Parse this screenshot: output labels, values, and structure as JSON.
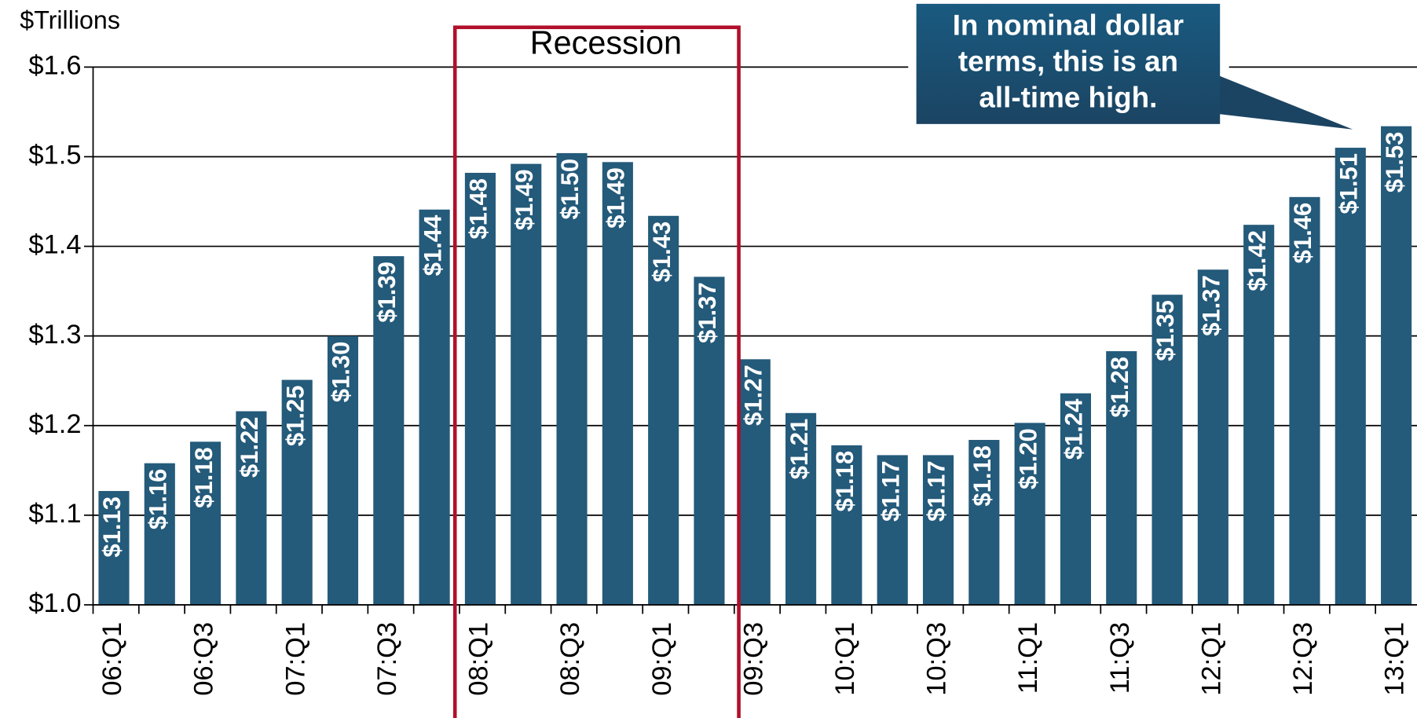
{
  "chart_data": {
    "type": "bar",
    "y_label": "$Trillions",
    "categories": [
      "06:Q1",
      null,
      "06:Q3",
      null,
      "07:Q1",
      null,
      "07:Q3",
      null,
      "08:Q1",
      null,
      "08:Q3",
      null,
      "09:Q1",
      null,
      "09:Q3",
      null,
      "10:Q1",
      null,
      "10:Q3",
      null,
      "11:Q1",
      null,
      "11:Q3",
      null,
      "12:Q1",
      null,
      "12:Q3",
      null,
      "13:Q1"
    ],
    "values": [
      1.127,
      1.158,
      1.182,
      1.216,
      1.251,
      1.3,
      1.389,
      1.441,
      1.482,
      1.492,
      1.504,
      1.494,
      1.434,
      1.366,
      1.274,
      1.214,
      1.178,
      1.167,
      1.167,
      1.184,
      1.203,
      1.236,
      1.283,
      1.346,
      1.374,
      1.424,
      1.455,
      1.51,
      1.534
    ],
    "value_labels": [
      "$1.13",
      "$1.16",
      "$1.18",
      "$1.22",
      "$1.25",
      "$1.30",
      "$1.39",
      "$1.44",
      "$1.48",
      "$1.49",
      "$1.50",
      "$1.49",
      "$1.43",
      "$1.37",
      "$1.27",
      "$1.21",
      "$1.18",
      "$1.17",
      "$1.17",
      "$1.18",
      "$1.20",
      "$1.24",
      "$1.28",
      "$1.35",
      "$1.37",
      "$1.42",
      "$1.46",
      "$1.51",
      "$1.53"
    ],
    "color": "#245a7a",
    "ylim": [
      1.0,
      1.6
    ],
    "yticks": [
      {
        "value": 1.0,
        "label": "$1.0"
      },
      {
        "value": 1.1,
        "label": "$1.1"
      },
      {
        "value": 1.2,
        "label": "$1.2"
      },
      {
        "value": 1.3,
        "label": "$1.3"
      },
      {
        "value": 1.4,
        "label": "$1.4"
      },
      {
        "value": 1.5,
        "label": "$1.5"
      },
      {
        "value": 1.6,
        "label": "$1.6"
      }
    ],
    "grid": true,
    "recession_label": "Recession",
    "callout": [
      "In nominal dollar",
      "terms, this is an",
      "all-time high."
    ]
  }
}
